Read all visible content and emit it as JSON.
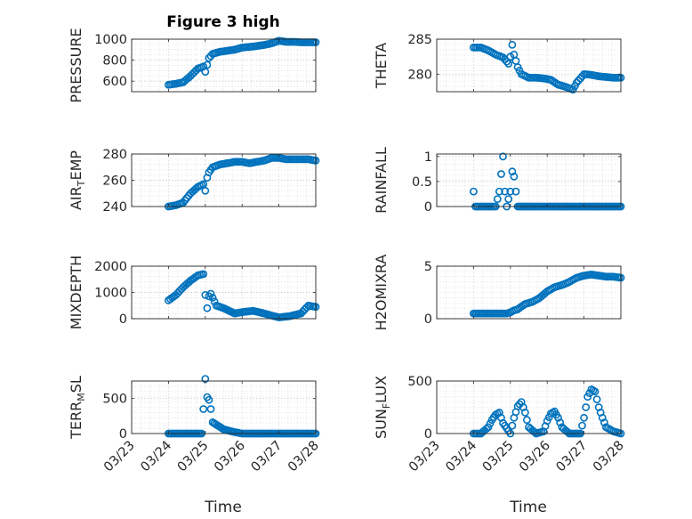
{
  "title": "Figure 3 high",
  "xlabel": "Time",
  "x_tick_labels": [
    "03/23",
    "03/24",
    "03/25",
    "03/26",
    "03/27",
    "03/28"
  ],
  "marker_color": "#0072BD",
  "chart_data": [
    {
      "type": "scatter",
      "ylabel_main": "PRESSURE",
      "ylabel_sub": "",
      "ylabel_rest": "",
      "ylim": [
        500,
        1000
      ],
      "yticks": [
        600,
        800,
        1000
      ],
      "x": [
        24.0,
        24.2,
        24.4,
        24.6,
        24.8,
        24.95,
        25.0,
        25.1,
        25.2,
        25.4,
        25.6,
        25.8,
        26.0,
        26.3,
        26.6,
        26.8,
        27.0,
        27.2,
        27.4,
        27.6,
        27.8,
        28.0
      ],
      "y": [
        565,
        575,
        590,
        650,
        720,
        740,
        690,
        820,
        860,
        880,
        890,
        900,
        920,
        930,
        945,
        960,
        985,
        975,
        975,
        970,
        970,
        970
      ]
    },
    {
      "type": "scatter",
      "ylabel_main": "THETA",
      "ylabel_sub": "",
      "ylabel_rest": "",
      "ylim": [
        277.5,
        285
      ],
      "yticks": [
        280,
        285
      ],
      "x": [
        24.0,
        24.2,
        24.4,
        24.6,
        24.8,
        24.95,
        25.0,
        25.05,
        25.1,
        25.2,
        25.3,
        25.5,
        25.7,
        25.9,
        26.1,
        26.3,
        26.5,
        26.6,
        26.7,
        26.8,
        27.0,
        27.2,
        27.4,
        27.6,
        27.8,
        28.0
      ],
      "y": [
        283.8,
        283.8,
        283.4,
        282.8,
        282.4,
        281.5,
        282.5,
        284.2,
        282.8,
        281.0,
        280.0,
        279.5,
        279.5,
        279.4,
        279.2,
        278.5,
        278.2,
        278.0,
        277.8,
        278.8,
        280.0,
        279.9,
        279.7,
        279.6,
        279.5,
        279.5
      ]
    },
    {
      "type": "scatter",
      "ylabel_main": "AIR",
      "ylabel_sub": "T",
      "ylabel_rest": "EMP",
      "ylim": [
        240,
        280
      ],
      "yticks": [
        240,
        260,
        280
      ],
      "x": [
        24.0,
        24.2,
        24.4,
        24.6,
        24.8,
        24.95,
        25.0,
        25.05,
        25.1,
        25.2,
        25.4,
        25.6,
        25.8,
        26.0,
        26.2,
        26.4,
        26.6,
        26.8,
        27.0,
        27.2,
        27.4,
        27.6,
        27.8,
        28.0
      ],
      "y": [
        240,
        241,
        243,
        250,
        255,
        257,
        252,
        262,
        266,
        270,
        272,
        273,
        274,
        274,
        273,
        274,
        275,
        277,
        277,
        276,
        276,
        276,
        276,
        275
      ]
    },
    {
      "type": "scatter",
      "ylabel_main": "RAINFALL",
      "ylabel_sub": "",
      "ylabel_rest": "",
      "ylim": [
        0,
        1.05
      ],
      "yticks": [
        0,
        0.5,
        1
      ],
      "x": [
        24.0,
        24.05,
        24.2,
        24.4,
        24.6,
        24.7,
        24.8,
        24.85,
        24.9,
        25.0,
        25.05,
        25.1,
        25.2,
        25.5,
        25.8,
        26.0,
        26.3,
        26.6,
        27.0,
        27.3,
        27.6,
        28.0
      ],
      "y": [
        0.3,
        0,
        0,
        0,
        0,
        0.3,
        1,
        0.3,
        0,
        0.3,
        0.7,
        0.6,
        0,
        0,
        0,
        0,
        0,
        0,
        0,
        0,
        0,
        0
      ]
    },
    {
      "type": "scatter",
      "ylabel_main": "MIXDEPTH",
      "ylabel_sub": "",
      "ylabel_rest": "",
      "ylim": [
        0,
        2000
      ],
      "yticks": [
        0,
        1000,
        2000
      ],
      "x": [
        24.0,
        24.2,
        24.4,
        24.6,
        24.8,
        24.95,
        25.0,
        25.05,
        25.1,
        25.15,
        25.3,
        25.5,
        25.8,
        26.0,
        26.3,
        26.6,
        27.0,
        27.3,
        27.6,
        27.8,
        28.0
      ],
      "y": [
        700,
        900,
        1200,
        1450,
        1650,
        1700,
        900,
        400,
        850,
        950,
        500,
        400,
        200,
        250,
        300,
        200,
        50,
        100,
        200,
        500,
        450
      ]
    },
    {
      "type": "scatter",
      "ylabel_main": "H2OMIXRA",
      "ylabel_sub": "",
      "ylabel_rest": "",
      "ylim": [
        0,
        5
      ],
      "yticks": [
        0,
        5
      ],
      "x": [
        24.0,
        24.3,
        24.6,
        24.9,
        25.0,
        25.1,
        25.2,
        25.4,
        25.6,
        25.8,
        26.0,
        26.2,
        26.4,
        26.6,
        26.8,
        27.0,
        27.2,
        27.4,
        27.6,
        27.8,
        28.0
      ],
      "y": [
        0.5,
        0.5,
        0.5,
        0.5,
        0.6,
        0.8,
        0.9,
        1.4,
        1.6,
        2.0,
        2.6,
        3.0,
        3.2,
        3.5,
        3.9,
        4.1,
        4.2,
        4.1,
        4.0,
        4.0,
        3.9
      ]
    },
    {
      "type": "scatter",
      "ylabel_main": "TERR",
      "ylabel_sub": "M",
      "ylabel_rest": "SL",
      "ylim": [
        0,
        750
      ],
      "yticks": [
        0,
        500
      ],
      "x": [
        24.0,
        24.3,
        24.6,
        24.9,
        24.95,
        25.0,
        25.05,
        25.1,
        25.15,
        25.2,
        25.5,
        25.8,
        26.0,
        26.3,
        26.6,
        27.0,
        27.3,
        27.6,
        28.0
      ],
      "y": [
        0,
        0,
        0,
        0,
        350,
        780,
        520,
        480,
        350,
        160,
        60,
        20,
        0,
        0,
        0,
        0,
        0,
        0,
        0
      ]
    },
    {
      "type": "scatter",
      "ylabel_main": "SUN",
      "ylabel_sub": "F",
      "ylabel_rest": "LUX",
      "ylim": [
        0,
        500
      ],
      "yticks": [
        0,
        500
      ],
      "x": [
        24.0,
        24.2,
        24.4,
        24.5,
        24.6,
        24.7,
        24.8,
        25.0,
        25.1,
        25.2,
        25.3,
        25.4,
        25.5,
        25.7,
        25.9,
        26.0,
        26.1,
        26.2,
        26.3,
        26.4,
        26.6,
        26.9,
        27.0,
        27.1,
        27.2,
        27.3,
        27.4,
        27.5,
        27.6,
        27.8,
        28.0
      ],
      "y": [
        0,
        0,
        60,
        130,
        180,
        200,
        100,
        0,
        150,
        260,
        300,
        200,
        60,
        0,
        20,
        120,
        190,
        210,
        150,
        60,
        0,
        0,
        150,
        350,
        420,
        400,
        250,
        150,
        60,
        20,
        0
      ]
    }
  ]
}
